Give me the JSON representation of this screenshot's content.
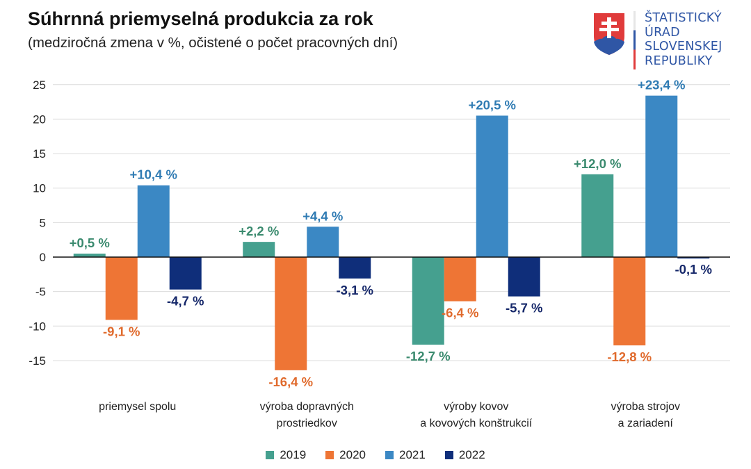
{
  "header": {
    "title": "Súhrnná priemyselná produkcia za rok",
    "subtitle": "(medziročná zmena v %, očistené o počet pracovných dní)"
  },
  "logo": {
    "lines": [
      "ŠTATISTICKÝ",
      "ÚRAD",
      "SLOVENSKEJ",
      "REPUBLIKY"
    ],
    "icon": "slovak-coat-of-arms-icon",
    "colors": {
      "text": "#2f56a5",
      "shield_red": "#e03b3b",
      "shield_blue": "#2f56a5"
    }
  },
  "chart_data": {
    "type": "bar",
    "title": "Súhrnná priemyselná produkcia za rok",
    "subtitle": "(medziročná zmena v %, očistené o počet pracovných dní)",
    "xlabel": "",
    "ylabel": "",
    "ylim": [
      -17.5,
      25
    ],
    "yticks": [
      25,
      20,
      15,
      10,
      5,
      0,
      -5,
      -10,
      -15
    ],
    "grid": true,
    "legend_position": "bottom",
    "categories": [
      [
        "priemysel spolu"
      ],
      [
        "výroba dopravných",
        "prostriedkov"
      ],
      [
        "výroby kovov",
        "a kovových konštrukcií"
      ],
      [
        "výroba strojov",
        "a zariadení"
      ]
    ],
    "series": [
      {
        "name": "2019",
        "color": "#45a08f",
        "values": [
          0.5,
          2.2,
          -12.7,
          12.0
        ],
        "labels": [
          "+0,5 %",
          "+2,2 %",
          "-12,7 %",
          "+12,0 %"
        ]
      },
      {
        "name": "2020",
        "color": "#ee7535",
        "values": [
          -9.1,
          -16.4,
          -6.4,
          -12.8
        ],
        "labels": [
          "-9,1 %",
          "-16,4 %",
          "-6,4 %",
          "-12,8 %"
        ]
      },
      {
        "name": "2021",
        "color": "#3b88c4",
        "values": [
          10.4,
          4.4,
          20.5,
          23.4
        ],
        "labels": [
          "+10,4 %",
          "+4,4 %",
          "+20,5 %",
          "+23,4 %"
        ]
      },
      {
        "name": "2022",
        "color": "#0f2e7a",
        "values": [
          -4.7,
          -3.1,
          -5.7,
          -0.1
        ],
        "labels": [
          "-4,7 %",
          "-3,1 %",
          "-5,7 %",
          "-0,1 %"
        ]
      }
    ],
    "label_colors": {
      "2019": "#3a8a6e",
      "2020": "#e06a2c",
      "2021": "#2f7bb3",
      "2022": "#16286a"
    }
  }
}
